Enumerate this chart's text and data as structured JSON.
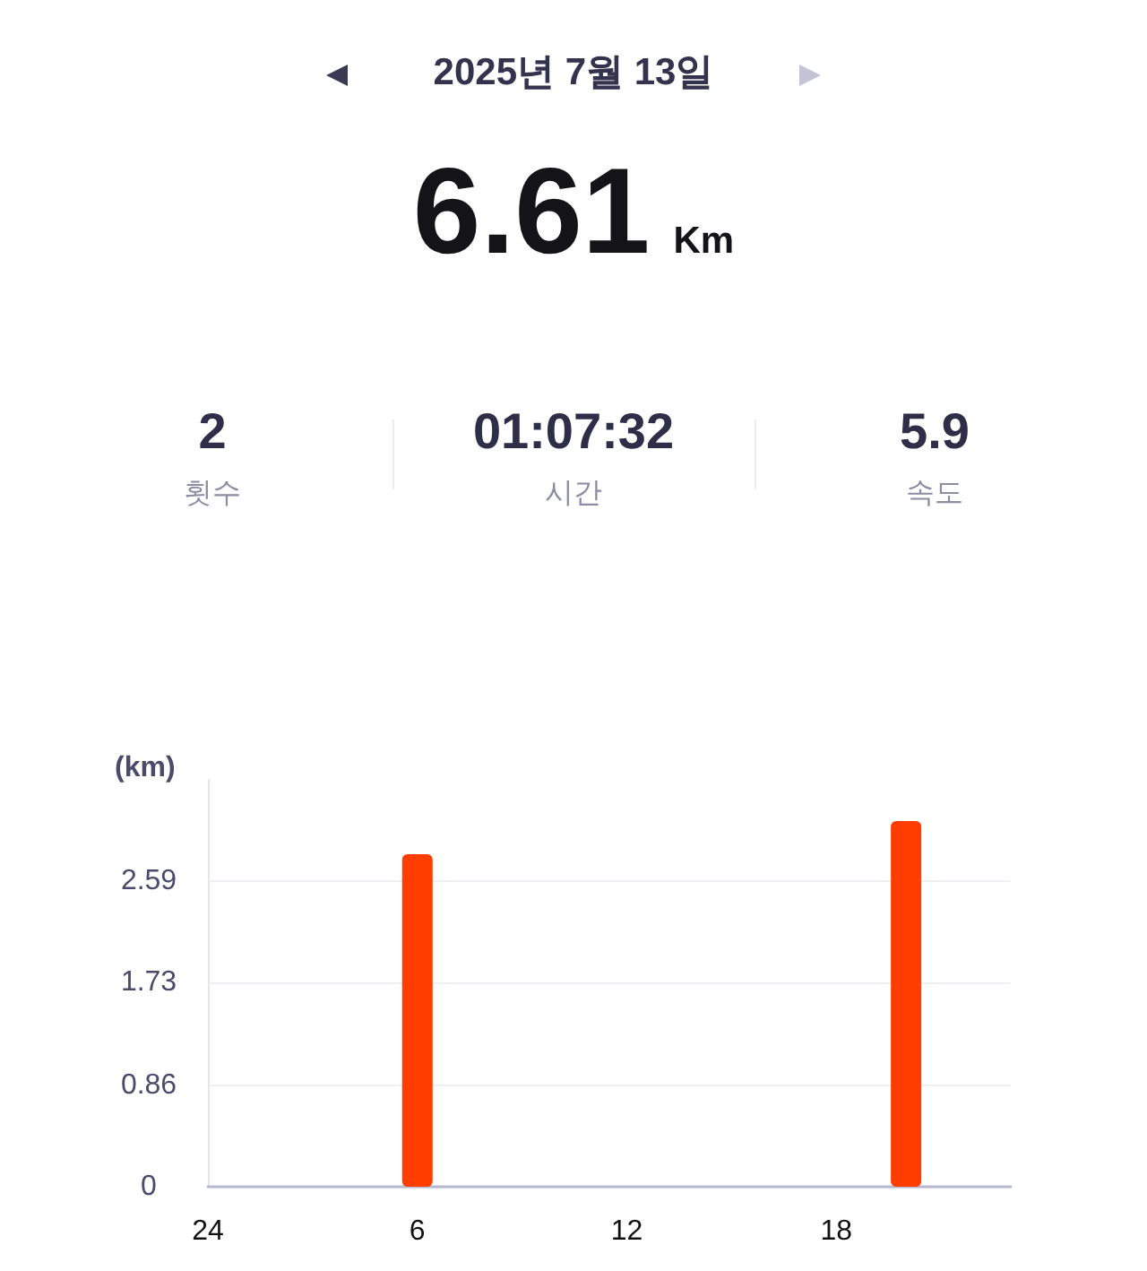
{
  "chart_data": {
    "type": "bar",
    "title": "2025년 7월 13일",
    "subtitle": "6.61 Km",
    "annotations": [
      "2",
      "횟수",
      "01:07:32",
      "시간",
      "5.9",
      "속도"
    ],
    "ylabel": "(km)",
    "categories": [
      "24",
      null,
      null,
      null,
      null,
      null,
      "6",
      null,
      null,
      null,
      null,
      null,
      "12",
      null,
      null,
      null,
      null,
      null,
      "18",
      null,
      null,
      null,
      null,
      null
    ],
    "values": [
      null,
      null,
      null,
      null,
      null,
      null,
      2.82,
      null,
      null,
      null,
      null,
      null,
      null,
      null,
      null,
      null,
      null,
      null,
      null,
      null,
      3.1,
      null,
      null,
      null
    ],
    "color": "#ff3d00",
    "ylim": [
      0,
      3.45
    ],
    "yticks": [
      0,
      0.86,
      1.73,
      2.59
    ],
    "grid": "y"
  }
}
